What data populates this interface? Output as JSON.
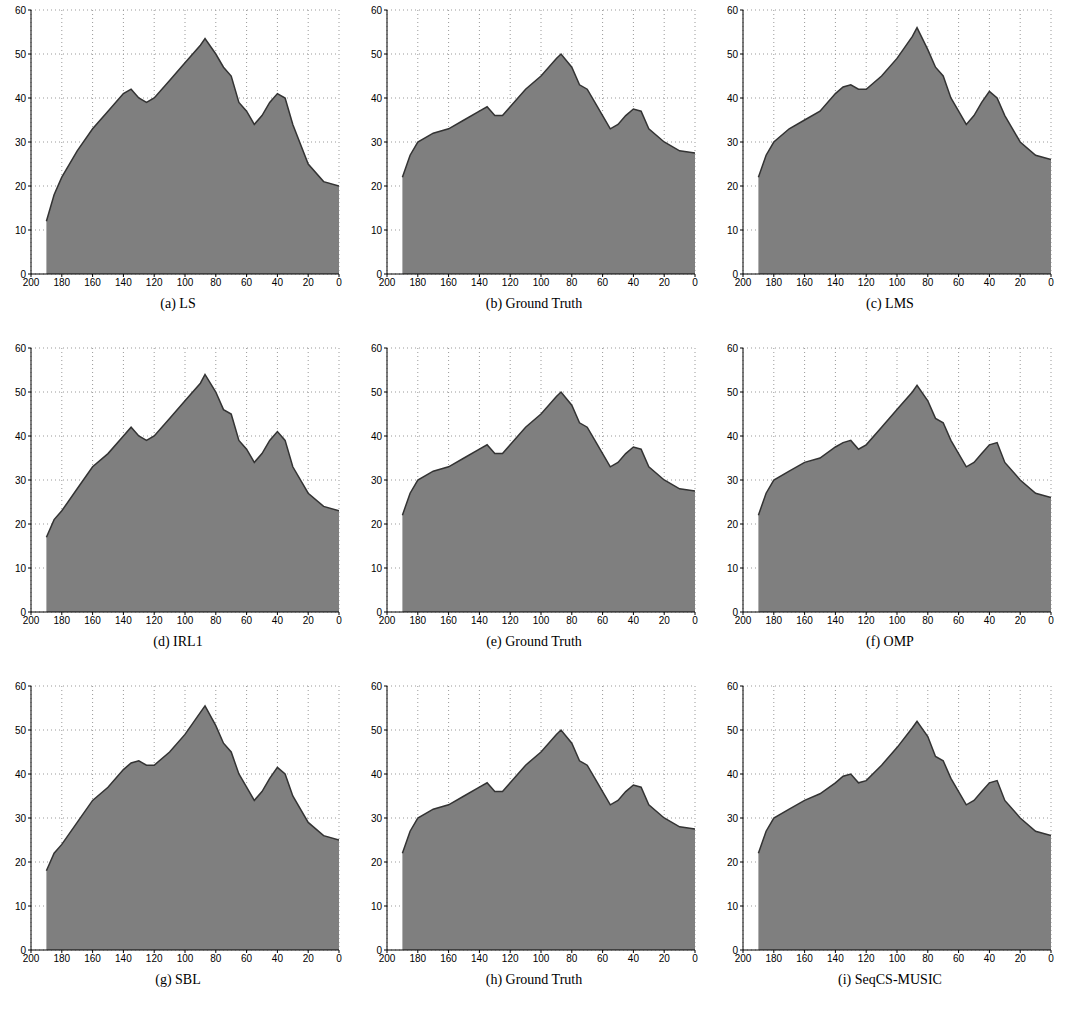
{
  "chart_data": [
    {
      "type": "area",
      "title": "(a) LS",
      "x": [
        190,
        185,
        180,
        170,
        160,
        150,
        140,
        135,
        130,
        125,
        120,
        110,
        100,
        90,
        87,
        80,
        75,
        70,
        65,
        60,
        55,
        50,
        45,
        40,
        35,
        30,
        20,
        10,
        0
      ],
      "values": [
        12,
        18,
        22,
        28,
        33,
        37,
        41,
        42,
        40,
        39,
        40,
        44,
        48,
        52,
        53.5,
        50,
        47,
        45,
        39,
        37,
        34,
        36,
        39,
        41,
        40,
        34,
        25,
        21,
        20
      ],
      "xlim": [
        200,
        0
      ],
      "ylim": [
        0,
        60
      ],
      "xticks": [
        0,
        20,
        40,
        60,
        80,
        100,
        120,
        140,
        160,
        180,
        200
      ],
      "yticks": [
        0,
        10,
        20,
        30,
        40,
        50,
        60
      ],
      "grid": true,
      "color": "#7f7f7f"
    },
    {
      "type": "area",
      "title": "(b) Ground Truth",
      "x": [
        190,
        185,
        180,
        170,
        160,
        150,
        140,
        135,
        130,
        125,
        120,
        110,
        100,
        90,
        87,
        80,
        75,
        70,
        65,
        60,
        55,
        50,
        45,
        40,
        35,
        30,
        20,
        10,
        0
      ],
      "values": [
        22,
        27,
        30,
        32,
        33,
        35,
        37,
        38,
        36,
        36,
        38,
        42,
        45,
        49,
        50,
        47,
        43,
        42,
        39,
        36,
        33,
        34,
        36,
        37.5,
        37,
        33,
        30,
        28,
        27.5
      ],
      "xlim": [
        200,
        0
      ],
      "ylim": [
        0,
        60
      ],
      "xticks": [
        0,
        20,
        40,
        60,
        80,
        100,
        120,
        140,
        160,
        180,
        200
      ],
      "yticks": [
        0,
        10,
        20,
        30,
        40,
        50,
        60
      ],
      "grid": true,
      "color": "#7f7f7f"
    },
    {
      "type": "area",
      "title": "(c) LMS",
      "x": [
        190,
        185,
        180,
        170,
        160,
        150,
        140,
        135,
        130,
        125,
        120,
        110,
        100,
        90,
        87,
        80,
        75,
        70,
        65,
        60,
        55,
        50,
        45,
        40,
        35,
        30,
        20,
        10,
        0
      ],
      "values": [
        22,
        27,
        30,
        33,
        35,
        37,
        41,
        42.5,
        43,
        42,
        42,
        45,
        49,
        54,
        56,
        51,
        47,
        45,
        40,
        37,
        34,
        36,
        39,
        41.5,
        40,
        36,
        30,
        27,
        26
      ],
      "xlim": [
        200,
        0
      ],
      "ylim": [
        0,
        60
      ],
      "xticks": [
        0,
        20,
        40,
        60,
        80,
        100,
        120,
        140,
        160,
        180,
        200
      ],
      "yticks": [
        0,
        10,
        20,
        30,
        40,
        50,
        60
      ],
      "grid": true,
      "color": "#7f7f7f"
    },
    {
      "type": "area",
      "title": "(d) IRL1",
      "x": [
        190,
        185,
        180,
        170,
        160,
        150,
        140,
        135,
        130,
        125,
        120,
        110,
        100,
        90,
        87,
        80,
        75,
        70,
        65,
        60,
        55,
        50,
        45,
        40,
        35,
        30,
        20,
        10,
        0
      ],
      "values": [
        17,
        21,
        23,
        28,
        33,
        36,
        40,
        42,
        40,
        39,
        40,
        44,
        48,
        52,
        54,
        50,
        46,
        45,
        39,
        37,
        34,
        36,
        39,
        41,
        39,
        33,
        27,
        24,
        23
      ],
      "xlim": [
        200,
        0
      ],
      "ylim": [
        0,
        60
      ],
      "xticks": [
        0,
        20,
        40,
        60,
        80,
        100,
        120,
        140,
        160,
        180,
        200
      ],
      "yticks": [
        0,
        10,
        20,
        30,
        40,
        50,
        60
      ],
      "grid": true,
      "color": "#7f7f7f"
    },
    {
      "type": "area",
      "title": "(e) Ground Truth",
      "x": [
        190,
        185,
        180,
        170,
        160,
        150,
        140,
        135,
        130,
        125,
        120,
        110,
        100,
        90,
        87,
        80,
        75,
        70,
        65,
        60,
        55,
        50,
        45,
        40,
        35,
        30,
        20,
        10,
        0
      ],
      "values": [
        22,
        27,
        30,
        32,
        33,
        35,
        37,
        38,
        36,
        36,
        38,
        42,
        45,
        49,
        50,
        47,
        43,
        42,
        39,
        36,
        33,
        34,
        36,
        37.5,
        37,
        33,
        30,
        28,
        27.5
      ],
      "xlim": [
        200,
        0
      ],
      "ylim": [
        0,
        60
      ],
      "xticks": [
        0,
        20,
        40,
        60,
        80,
        100,
        120,
        140,
        160,
        180,
        200
      ],
      "yticks": [
        0,
        10,
        20,
        30,
        40,
        50,
        60
      ],
      "grid": true,
      "color": "#7f7f7f"
    },
    {
      "type": "area",
      "title": "(f) OMP",
      "x": [
        190,
        185,
        180,
        170,
        160,
        150,
        140,
        135,
        130,
        125,
        120,
        110,
        100,
        90,
        87,
        80,
        75,
        70,
        65,
        60,
        55,
        50,
        45,
        40,
        35,
        30,
        20,
        10,
        0
      ],
      "values": [
        22,
        27,
        30,
        32,
        34,
        35,
        37.5,
        38.5,
        39,
        37,
        38,
        42,
        46,
        50,
        51.5,
        48,
        44,
        43,
        39,
        36,
        33,
        34,
        36,
        38,
        38.5,
        34,
        30,
        27,
        26
      ],
      "xlim": [
        200,
        0
      ],
      "ylim": [
        0,
        60
      ],
      "xticks": [
        0,
        20,
        40,
        60,
        80,
        100,
        120,
        140,
        160,
        180,
        200
      ],
      "yticks": [
        0,
        10,
        20,
        30,
        40,
        50,
        60
      ],
      "grid": true,
      "color": "#7f7f7f"
    },
    {
      "type": "area",
      "title": "(g) SBL",
      "x": [
        190,
        185,
        180,
        170,
        160,
        150,
        140,
        135,
        130,
        125,
        120,
        110,
        100,
        90,
        87,
        80,
        75,
        70,
        65,
        60,
        55,
        50,
        45,
        40,
        35,
        30,
        20,
        10,
        0
      ],
      "values": [
        18,
        22,
        24,
        29,
        34,
        37,
        41,
        42.5,
        43,
        42,
        42,
        45,
        49,
        54,
        55.5,
        51,
        47,
        45,
        40,
        37,
        34,
        36,
        39,
        41.5,
        40,
        35,
        29,
        26,
        25
      ],
      "xlim": [
        200,
        0
      ],
      "ylim": [
        0,
        60
      ],
      "xticks": [
        0,
        20,
        40,
        60,
        80,
        100,
        120,
        140,
        160,
        180,
        200
      ],
      "yticks": [
        0,
        10,
        20,
        30,
        40,
        50,
        60
      ],
      "grid": true,
      "color": "#7f7f7f"
    },
    {
      "type": "area",
      "title": "(h) Ground Truth",
      "x": [
        190,
        185,
        180,
        170,
        160,
        150,
        140,
        135,
        130,
        125,
        120,
        110,
        100,
        90,
        87,
        80,
        75,
        70,
        65,
        60,
        55,
        50,
        45,
        40,
        35,
        30,
        20,
        10,
        0
      ],
      "values": [
        22,
        27,
        30,
        32,
        33,
        35,
        37,
        38,
        36,
        36,
        38,
        42,
        45,
        49,
        50,
        47,
        43,
        42,
        39,
        36,
        33,
        34,
        36,
        37.5,
        37,
        33,
        30,
        28,
        27.5
      ],
      "xlim": [
        200,
        0
      ],
      "ylim": [
        0,
        60
      ],
      "xticks": [
        0,
        20,
        40,
        60,
        80,
        100,
        120,
        140,
        160,
        180,
        200
      ],
      "yticks": [
        0,
        10,
        20,
        30,
        40,
        50,
        60
      ],
      "grid": true,
      "color": "#7f7f7f"
    },
    {
      "type": "area",
      "title": "(i) SeqCS-MUSIC",
      "x": [
        190,
        185,
        180,
        170,
        160,
        150,
        140,
        135,
        130,
        125,
        120,
        110,
        100,
        90,
        87,
        80,
        75,
        70,
        65,
        60,
        55,
        50,
        45,
        40,
        35,
        30,
        20,
        10,
        0
      ],
      "values": [
        22,
        27,
        30,
        32,
        34,
        35.5,
        38,
        39.5,
        40,
        38,
        38.5,
        42,
        46,
        50.5,
        52,
        48.5,
        44,
        43,
        39,
        36,
        33,
        34,
        36,
        38,
        38.5,
        34,
        30,
        27,
        26
      ],
      "xlim": [
        200,
        0
      ],
      "ylim": [
        0,
        60
      ],
      "xticks": [
        0,
        20,
        40,
        60,
        80,
        100,
        120,
        140,
        160,
        180,
        200
      ],
      "yticks": [
        0,
        10,
        20,
        30,
        40,
        50,
        60
      ],
      "grid": true,
      "color": "#7f7f7f"
    }
  ]
}
